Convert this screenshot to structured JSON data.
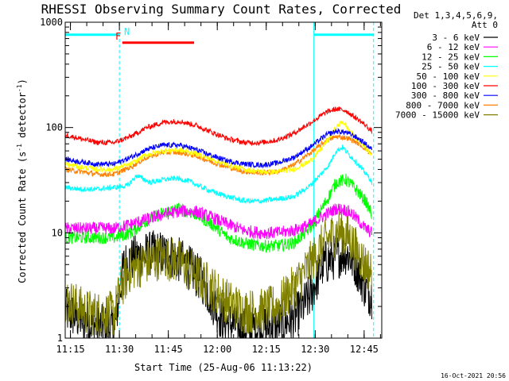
{
  "chart_data": {
    "type": "line",
    "title": "RHESSI Observing Summary Count Rates, Corrected",
    "xlabel": "Start Time (25-Aug-06 11:13:22)",
    "ylabel_parts": [
      "Corrected Count Rate (s",
      "-1",
      " detector",
      "-1",
      ")"
    ],
    "x_unit": "minutes after 11:13:22",
    "x_range_minutes": [
      0,
      97
    ],
    "y_scale": "log",
    "ylim": [
      1,
      1000
    ],
    "x_ticks": [
      {
        "label": "11:15",
        "t": 1.6
      },
      {
        "label": "11:30",
        "t": 16.6
      },
      {
        "label": "11:45",
        "t": 31.6
      },
      {
        "label": "12:00",
        "t": 46.6
      },
      {
        "label": "12:15",
        "t": 61.6
      },
      {
        "label": "12:30",
        "t": 76.6
      },
      {
        "label": "12:45",
        "t": 91.6
      }
    ],
    "y_ticks": [
      {
        "label": "1",
        "v": 1
      },
      {
        "label": "10",
        "v": 10
      },
      {
        "label": "100",
        "v": 100
      },
      {
        "label": "1000",
        "v": 1000
      }
    ],
    "legend_header": [
      "Det 1,3,4,5,6,9,",
      "Att 0"
    ],
    "legend_position": "right",
    "series": [
      {
        "name": "3 - 6 keV",
        "color": "#000000",
        "t": [
          0,
          5,
          10,
          15,
          18,
          22,
          28,
          33,
          37,
          42,
          48,
          55,
          62,
          70,
          75,
          79,
          83,
          86,
          89,
          92,
          94
        ],
        "values": [
          1.8,
          1.5,
          1.3,
          1.2,
          5,
          6,
          6.5,
          6,
          5,
          3.5,
          1.5,
          1.2,
          1.3,
          1.5,
          2.5,
          5,
          6,
          6.5,
          5,
          3,
          2.5
        ]
      },
      {
        "name": "6 - 12 keV",
        "color": "#ff00ff",
        "t": [
          0,
          5,
          10,
          15,
          20,
          25,
          30,
          35,
          40,
          45,
          50,
          55,
          60,
          65,
          70,
          75,
          80,
          83,
          86,
          88,
          90,
          92,
          94
        ],
        "values": [
          11,
          11,
          11,
          11,
          12,
          13.5,
          15,
          16,
          16,
          14,
          12,
          10.5,
          10,
          10,
          10.5,
          12,
          15,
          17,
          16.5,
          15,
          13,
          11,
          10
        ]
      },
      {
        "name": "12 - 25 keV",
        "color": "#00ff00",
        "t": [
          0,
          5,
          10,
          15,
          20,
          25,
          30,
          35,
          40,
          45,
          50,
          55,
          60,
          65,
          70,
          75,
          80,
          83,
          86,
          88,
          90,
          92,
          94
        ],
        "values": [
          9,
          9,
          9,
          9,
          10,
          13,
          15.5,
          17,
          15,
          12,
          9,
          8,
          7.5,
          7.5,
          8,
          11,
          20,
          30,
          32,
          28,
          24,
          20,
          15
        ]
      },
      {
        "name": "25 - 50 keV",
        "color": "#00ffff",
        "t": [
          0,
          5,
          10,
          15,
          19,
          22,
          26,
          30,
          34,
          38,
          42,
          46,
          50,
          55,
          60,
          65,
          70,
          75,
          78,
          81,
          83,
          85,
          87,
          89,
          91,
          93,
          94
        ],
        "values": [
          27,
          26,
          26,
          27,
          28,
          35,
          30,
          32,
          33,
          31,
          27,
          24,
          22,
          20,
          20,
          21,
          22,
          28,
          35,
          45,
          60,
          65,
          55,
          48,
          40,
          34,
          30
        ]
      },
      {
        "name": "50 - 100 keV",
        "color": "#ffff00",
        "t": [
          0,
          5,
          10,
          15,
          20,
          25,
          30,
          35,
          40,
          45,
          50,
          55,
          60,
          65,
          70,
          75,
          78,
          81,
          83,
          85,
          87,
          89,
          91,
          93,
          94
        ],
        "values": [
          45,
          42,
          40,
          40,
          45,
          55,
          60,
          61,
          57,
          50,
          44,
          40,
          38,
          38,
          40,
          48,
          60,
          80,
          100,
          115,
          95,
          80,
          70,
          60,
          55
        ]
      },
      {
        "name": "100 - 300 keV",
        "color": "#ff0000",
        "t": [
          0,
          5,
          10,
          15,
          20,
          25,
          30,
          35,
          40,
          45,
          50,
          55,
          60,
          65,
          70,
          75,
          80,
          83,
          86,
          88,
          90,
          92,
          94
        ],
        "values": [
          85,
          78,
          72,
          72,
          82,
          100,
          112,
          115,
          105,
          90,
          78,
          72,
          72,
          76,
          88,
          110,
          140,
          150,
          145,
          130,
          118,
          105,
          92
        ]
      },
      {
        "name": "300 - 800 keV",
        "color": "#0000ff",
        "t": [
          0,
          5,
          10,
          15,
          20,
          25,
          30,
          35,
          40,
          45,
          50,
          55,
          60,
          65,
          70,
          75,
          80,
          83,
          86,
          88,
          90,
          92,
          94
        ],
        "values": [
          50,
          47,
          45,
          45,
          52,
          62,
          68,
          68,
          62,
          54,
          48,
          45,
          44,
          46,
          52,
          65,
          85,
          92,
          90,
          85,
          78,
          70,
          62
        ]
      },
      {
        "name": "800 - 7000 keV",
        "color": "#ff8000",
        "t": [
          0,
          5,
          10,
          15,
          20,
          25,
          30,
          35,
          40,
          45,
          50,
          55,
          60,
          65,
          70,
          75,
          80,
          83,
          86,
          88,
          90,
          92,
          94
        ],
        "values": [
          40,
          38,
          36,
          36,
          42,
          52,
          58,
          58,
          54,
          47,
          42,
          38,
          37,
          38,
          44,
          57,
          75,
          82,
          80,
          76,
          70,
          63,
          55
        ]
      },
      {
        "name": "7000 - 15000 keV",
        "color": "#808000",
        "t": [
          0,
          3,
          6,
          10,
          15,
          17,
          20,
          25,
          30,
          35,
          40,
          45,
          50,
          55,
          60,
          65,
          70,
          75,
          78,
          81,
          84,
          87,
          89,
          91,
          93,
          94
        ],
        "values": [
          2.3,
          2.1,
          1.8,
          1.7,
          1.7,
          3,
          4.5,
          5.3,
          6,
          5.3,
          4,
          3,
          2.2,
          1.8,
          1.8,
          2,
          3,
          5,
          7,
          9,
          10.5,
          9,
          7,
          5.5,
          4.5,
          4
        ]
      }
    ],
    "annotations": [
      {
        "label": "F",
        "color": "#ff0000"
      },
      {
        "label": "N",
        "color": "#00ffff"
      }
    ],
    "attenuator_bars": [
      {
        "color": "#00ffff",
        "t": [
          0,
          16.5
        ],
        "level": 760
      },
      {
        "color": "#ff0000",
        "t": [
          17.5,
          39.5
        ],
        "level": 640
      },
      {
        "color": "#00ffff",
        "t": [
          76.2,
          94.5
        ],
        "level": 760
      }
    ],
    "vertical_markers": [
      {
        "t": 0,
        "color": "#00ffff",
        "style": "dashed"
      },
      {
        "t": 16.6,
        "color": "#00ffff",
        "style": "dashed"
      },
      {
        "t": 76.2,
        "color": "#00ffff",
        "style": "solid"
      },
      {
        "t": 94.5,
        "color": "#00ffff",
        "style": "dashed"
      }
    ],
    "grid": false
  },
  "footer": {
    "timestamp": "16-Oct-2021 20:56"
  }
}
